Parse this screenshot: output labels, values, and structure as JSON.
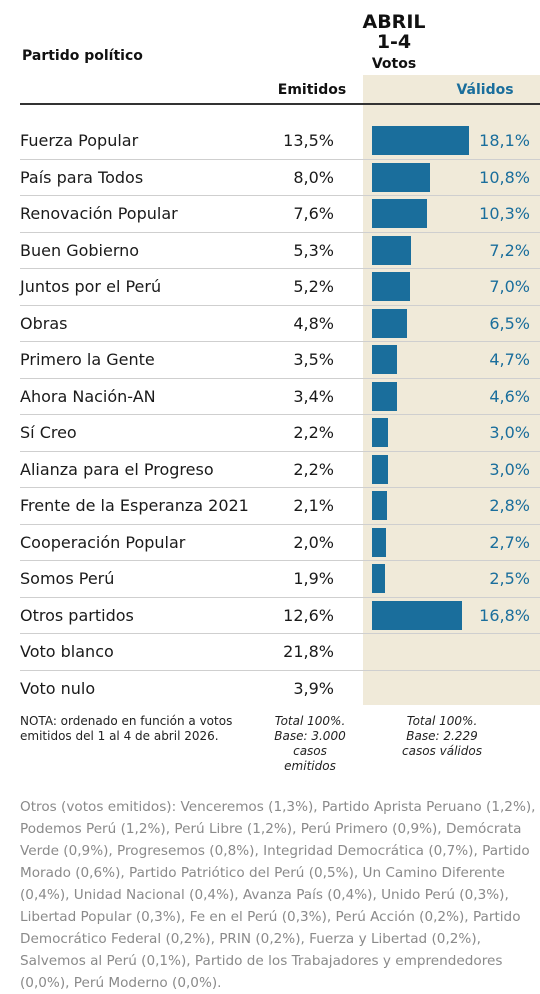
{
  "header": {
    "party_column": "Partido político",
    "period": "ABRIL",
    "days": "1-4",
    "votes": "Votos",
    "emitted": "Emitidos",
    "valid": "Válidos"
  },
  "table": {
    "rows": [
      {
        "party": "Fuerza Popular",
        "emitidos": "13,5%",
        "validos": {
          "value": 18.1,
          "label": "18,1%"
        }
      },
      {
        "party": "País para Todos",
        "emitidos": "8,0%",
        "validos": {
          "value": 10.8,
          "label": "10,8%"
        }
      },
      {
        "party": "Renovación Popular",
        "emitidos": "7,6%",
        "validos": {
          "value": 10.3,
          "label": "10,3%"
        }
      },
      {
        "party": "Buen Gobierno",
        "emitidos": "5,3%",
        "validos": {
          "value": 7.2,
          "label": "7,2%"
        }
      },
      {
        "party": "Juntos por el Perú",
        "emitidos": "5,2%",
        "validos": {
          "value": 7.0,
          "label": "7,0%"
        }
      },
      {
        "party": "Obras",
        "emitidos": "4,8%",
        "validos": {
          "value": 6.5,
          "label": "6,5%"
        }
      },
      {
        "party": "Primero la Gente",
        "emitidos": "3,5%",
        "validos": {
          "value": 4.7,
          "label": "4,7%"
        }
      },
      {
        "party": "Ahora Nación-AN",
        "emitidos": "3,4%",
        "validos": {
          "value": 4.6,
          "label": "4,6%"
        }
      },
      {
        "party": "Sí Creo",
        "emitidos": "2,2%",
        "validos": {
          "value": 3.0,
          "label": "3,0%"
        }
      },
      {
        "party": "Alianza para el Progreso",
        "emitidos": "2,2%",
        "validos": {
          "value": 3.0,
          "label": "3,0%"
        }
      },
      {
        "party": "Frente de la Esperanza 2021",
        "emitidos": "2,1%",
        "validos": {
          "value": 2.8,
          "label": "2,8%"
        }
      },
      {
        "party": "Cooperación Popular",
        "emitidos": "2,0%",
        "validos": {
          "value": 2.7,
          "label": "2,7%"
        }
      },
      {
        "party": "Somos Perú",
        "emitidos": "1,9%",
        "validos": {
          "value": 2.5,
          "label": "2,5%"
        }
      },
      {
        "party": "Otros partidos",
        "emitidos": "12,6%",
        "validos": {
          "value": 16.8,
          "label": "16,8%"
        }
      },
      {
        "party": "Voto blanco",
        "emitidos": "21,8%"
      },
      {
        "party": "Voto nulo",
        "emitidos": "3,9%"
      }
    ],
    "bar_color": "#1a6e9c"
  },
  "notes": {
    "nota": "NOTA: ordenado en función a votos emitidos del 1 al 4 de abril 2026.",
    "emitted_base": "Total 100%. Base: 3.000 casos emitidos",
    "valid_base": "Total 100%. Base: 2.229 casos válidos"
  },
  "footnote": "Otros (votos emitidos): Venceremos (1,3%), Partido Aprista Peruano (1,2%), Podemos Perú (1,2%), Perú Libre (1,2%), Perú Primero (0,9%), Demócrata Verde (0,9%), Progresemos (0,8%), Integridad Democrática (0,7%), Partido Morado (0,6%), Partido Patriótico del Perú (0,5%), Un Camino Diferente (0,4%), Unidad Nacional (0,4%), Avanza País (0,4%), Unido Perú (0,3%), Libertad Popular (0,3%), Fe en el Perú (0,3%), Perú Acción (0,2%), Partido Democrático Federal (0,2%), PRIN (0,2%), Fuerza y Libertad (0,2%), Salvemos al Perú (0,1%), Partido de los Trabajadores y emprendedores (0,0%), Perú Moderno (0,0%)."
}
